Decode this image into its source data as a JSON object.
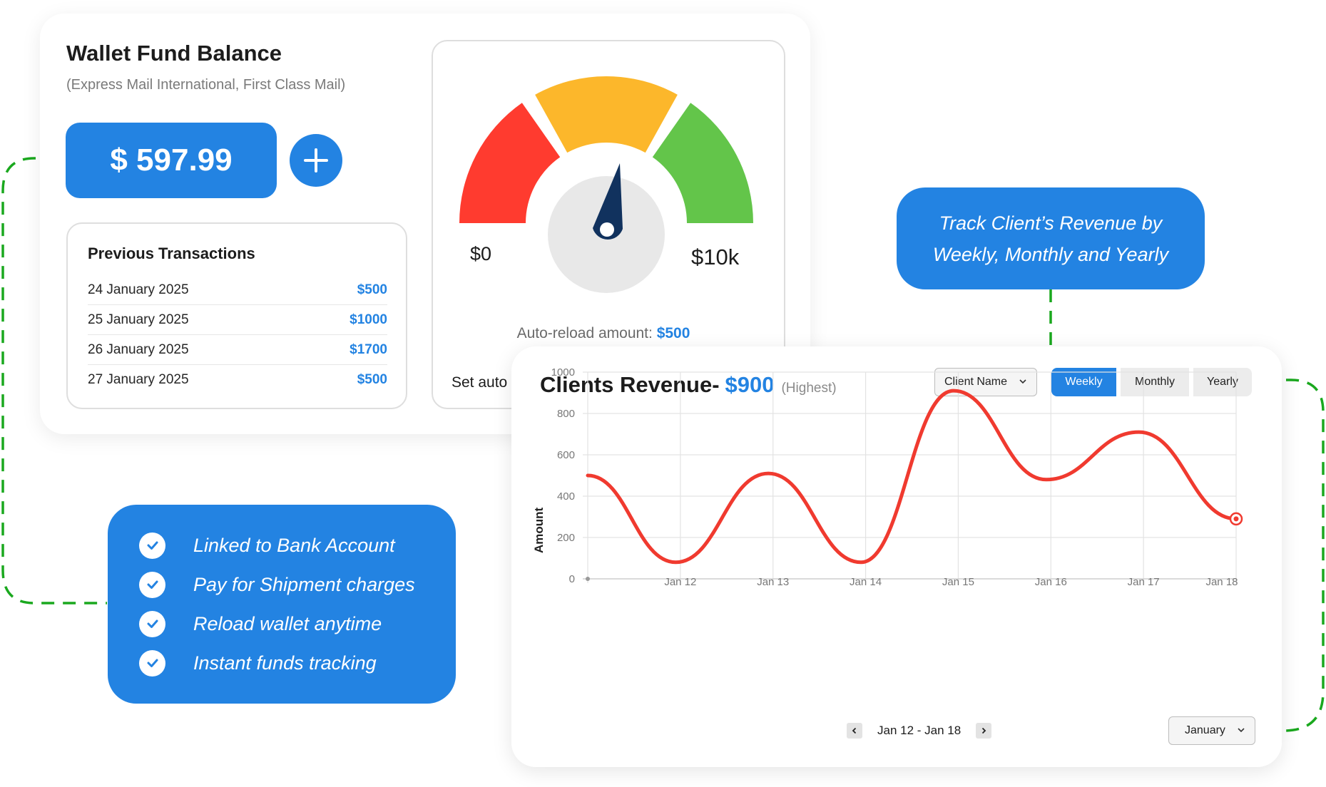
{
  "wallet": {
    "title": "Wallet Fund Balance",
    "subtitle": "(Express Mail International, First Class Mail)",
    "balance": "$ 597.99",
    "add_icon": "plus-icon",
    "transactions_title": "Previous Transactions",
    "transactions": [
      {
        "date": "24 January 2025",
        "amount": "$500"
      },
      {
        "date": "25 January 2025",
        "amount": "$1000"
      },
      {
        "date": "26 January 2025",
        "amount": "$1700"
      },
      {
        "date": "27 January 2025",
        "amount": "$500"
      }
    ],
    "gauge": {
      "min_label": "$0",
      "max_label": "$10k",
      "reload_label": "Auto-reload amount:",
      "reload_value": "$500",
      "set_auto_label": "Set auto",
      "segment_colors": [
        "#ff3b2f",
        "#fcb72b",
        "#63c54a"
      ],
      "needle_color": "#11325e"
    }
  },
  "features": {
    "items": [
      {
        "label": "Linked to Bank Account",
        "icon": "check-icon"
      },
      {
        "label": "Pay for Shipment charges",
        "icon": "check-icon"
      },
      {
        "label": "Reload wallet anytime",
        "icon": "check-icon"
      },
      {
        "label": "Instant funds tracking",
        "icon": "check-icon"
      }
    ]
  },
  "callout": {
    "line1": "Track Client’s Revenue by",
    "line2": "Weekly, Monthly  and Yearly"
  },
  "revenue": {
    "title": "Clients Revenue-",
    "highest_value": "$900",
    "highest_note": "(Highest)",
    "client_select": "Client Name",
    "tabs": [
      {
        "label": "Weekly",
        "active": true
      },
      {
        "label": "Monthly",
        "active": false
      },
      {
        "label": "Yearly",
        "active": false
      }
    ],
    "range_label": "Jan 12 - Jan 18",
    "month_select": "January"
  },
  "colors": {
    "accent": "#2383e2",
    "line": "#f03a2f",
    "connector": "#1aa81e"
  },
  "chart_data": {
    "type": "line",
    "ylabel": "Amount",
    "xlabel": "",
    "ylim": [
      0,
      1000
    ],
    "yticks": [
      0,
      200,
      400,
      600,
      800,
      1000
    ],
    "x_tick_labels": [
      "Jan 12",
      "Jan 13",
      "Jan 14",
      "Jan 15",
      "Jan 16",
      "Jan 17",
      "Jan 18"
    ],
    "grid": true,
    "points": [
      {
        "x": "Jan 11",
        "y": 500
      },
      {
        "x": "Jan 11.5",
        "y": 80
      },
      {
        "x": "Jan 12.5",
        "y": 510
      },
      {
        "x": "Jan 13.5",
        "y": 80
      },
      {
        "x": "Jan 14.5",
        "y": 910
      },
      {
        "x": "Jan 15.5",
        "y": 480
      },
      {
        "x": "Jan 16.5",
        "y": 710
      },
      {
        "x": "Jan 18",
        "y": 290
      }
    ],
    "series": [
      {
        "name": "",
        "values": [
          500,
          80,
          510,
          80,
          910,
          480,
          710,
          290
        ]
      }
    ]
  }
}
